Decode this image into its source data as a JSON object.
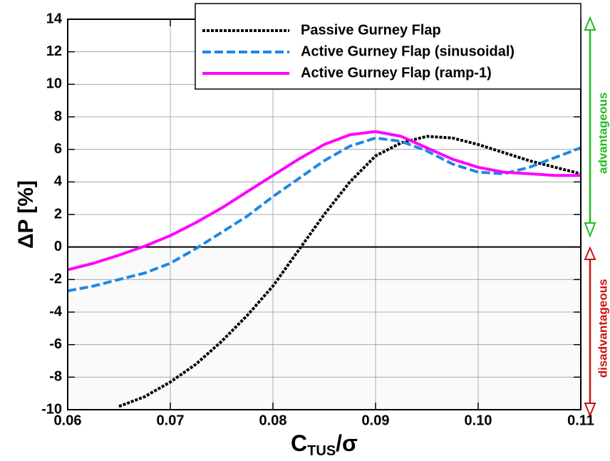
{
  "chart_data": {
    "type": "line",
    "ylabel": "ΔP [%]",
    "xlabel": [
      "C",
      "TUS",
      "/σ"
    ],
    "x": [
      0.06,
      0.0625,
      0.065,
      0.0675,
      0.07,
      0.0725,
      0.075,
      0.0775,
      0.08,
      0.0825,
      0.085,
      0.0875,
      0.09,
      0.0925,
      0.095,
      0.0975,
      0.1,
      0.1025,
      0.105,
      0.1075,
      0.11
    ],
    "series": [
      {
        "name": "Passive Gurney Flap",
        "color": "#000000",
        "dash": "4 2",
        "values": [
          null,
          null,
          -9.8,
          -9.2,
          -8.3,
          -7.2,
          -5.8,
          -4.2,
          -2.4,
          -0.2,
          2.0,
          4.0,
          5.6,
          6.4,
          6.8,
          6.7,
          6.3,
          5.8,
          5.3,
          4.9,
          4.5
        ]
      },
      {
        "name": "Active Gurney Flap (sinusoidal)",
        "color": "#1e88e5",
        "dash": "12 5",
        "values": [
          -2.7,
          -2.4,
          -2.0,
          -1.6,
          -1.0,
          -0.1,
          0.9,
          1.9,
          3.1,
          4.2,
          5.3,
          6.2,
          6.7,
          6.5,
          5.9,
          5.1,
          4.6,
          4.5,
          4.9,
          5.5,
          6.1
        ]
      },
      {
        "name": "Active Gurney Flap (ramp-1)",
        "color": "#ff00ff",
        "dash": "none",
        "values": [
          -1.4,
          -1.0,
          -0.5,
          0.05,
          0.7,
          1.5,
          2.4,
          3.4,
          4.4,
          5.4,
          6.3,
          6.9,
          7.1,
          6.8,
          6.1,
          5.4,
          4.9,
          4.6,
          4.5,
          4.4,
          4.4
        ]
      }
    ],
    "xlim": [
      0.06,
      0.11
    ],
    "xticks": [
      0.06,
      0.07,
      0.08,
      0.09,
      {
        "value": 0.1,
        "label": "0.10"
      },
      0.11
    ],
    "ylim": [
      -10,
      14
    ],
    "yticks": [
      -10,
      -8,
      -6,
      -4,
      -2,
      0,
      2,
      4,
      6,
      8,
      10,
      12,
      14
    ],
    "grid": true,
    "legend": "upper right",
    "annotations": [
      {
        "text": "advantageous",
        "color": "#22bb22"
      },
      {
        "text": "disadvantageous",
        "color": "#cc1111"
      }
    ]
  }
}
